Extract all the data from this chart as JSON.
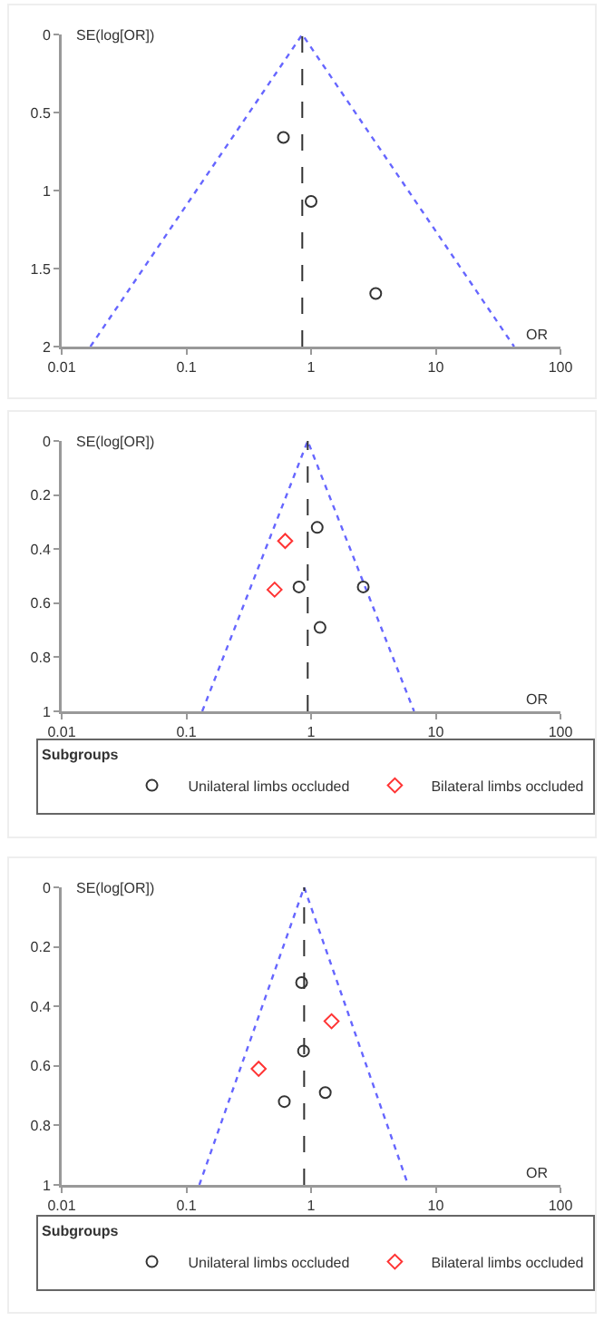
{
  "chart_data": [
    {
      "type": "scatter",
      "xlabel": "OR",
      "ylabel": "SE(log[OR])",
      "log": "x",
      "xlim": [
        0.01,
        100
      ],
      "xticks": [
        0.01,
        0.1,
        1,
        10,
        100
      ],
      "ylim": [
        2,
        0
      ],
      "yticks": [
        0,
        0.5,
        1,
        1.5,
        2
      ],
      "grid": false,
      "legend": false,
      "series": [
        {
          "type": "line",
          "color": "#6666ff",
          "line_style": "dotted",
          "marker": "none",
          "x": [
            0.017,
            0.85,
            42.5
          ],
          "values": [
            2,
            0,
            2
          ]
        },
        {
          "color": "#333333",
          "marker": "circle",
          "x": [
            0.6,
            1.0,
            3.3
          ],
          "values": [
            0.66,
            1.07,
            1.66
          ]
        }
      ],
      "ref_lines": [
        {
          "axis": "x",
          "value": 0.85,
          "color": "#333333",
          "line_style": "dashed"
        }
      ]
    },
    {
      "type": "scatter",
      "xlabel": "OR",
      "ylabel": "SE(log[OR])",
      "log": "x",
      "xlim": [
        0.01,
        100
      ],
      "xticks": [
        0.01,
        0.1,
        1,
        10,
        100
      ],
      "ylim": [
        1,
        0
      ],
      "yticks": [
        0,
        0.2,
        0.4,
        0.6,
        0.8,
        1
      ],
      "grid": false,
      "legend": "bottom",
      "legend_title": "Subgroups",
      "series": [
        {
          "type": "line",
          "color": "#6666ff",
          "line_style": "dotted",
          "marker": "none",
          "x": [
            0.134,
            0.94,
            6.7
          ],
          "values": [
            1,
            0,
            1
          ]
        },
        {
          "name": "Unilateral limbs occluded",
          "color": "#333333",
          "marker": "circle",
          "x": [
            1.12,
            0.8,
            2.62,
            1.18
          ],
          "values": [
            0.32,
            0.54,
            0.54,
            0.69
          ]
        },
        {
          "name": "Bilateral limbs occluded",
          "color": "#ff3333",
          "marker": "diamond",
          "x": [
            0.62,
            0.51
          ],
          "values": [
            0.37,
            0.55
          ]
        }
      ],
      "ref_lines": [
        {
          "axis": "x",
          "value": 0.94,
          "color": "#333333",
          "line_style": "dashed"
        }
      ]
    },
    {
      "type": "scatter",
      "xlabel": "OR",
      "ylabel": "SE(log[OR])",
      "log": "x",
      "xlim": [
        0.01,
        100
      ],
      "xticks": [
        0.01,
        0.1,
        1,
        10,
        100
      ],
      "ylim": [
        1,
        0
      ],
      "yticks": [
        0,
        0.2,
        0.4,
        0.6,
        0.8,
        1
      ],
      "grid": false,
      "legend": "bottom",
      "legend_title": "Subgroups",
      "series": [
        {
          "type": "line",
          "color": "#6666ff",
          "line_style": "dotted",
          "marker": "none",
          "x": [
            0.127,
            0.88,
            6.0
          ],
          "values": [
            1,
            0,
            1
          ]
        },
        {
          "name": "Unilateral limbs occluded",
          "color": "#333333",
          "marker": "circle",
          "x": [
            0.84,
            0.87,
            1.3,
            0.61
          ],
          "values": [
            0.32,
            0.55,
            0.69,
            0.72
          ]
        },
        {
          "name": "Bilateral limbs occluded",
          "color": "#ff3333",
          "marker": "diamond",
          "x": [
            1.46,
            0.38
          ],
          "values": [
            0.45,
            0.61
          ]
        }
      ],
      "ref_lines": [
        {
          "axis": "x",
          "value": 0.88,
          "color": "#333333",
          "line_style": "dashed"
        }
      ]
    }
  ]
}
